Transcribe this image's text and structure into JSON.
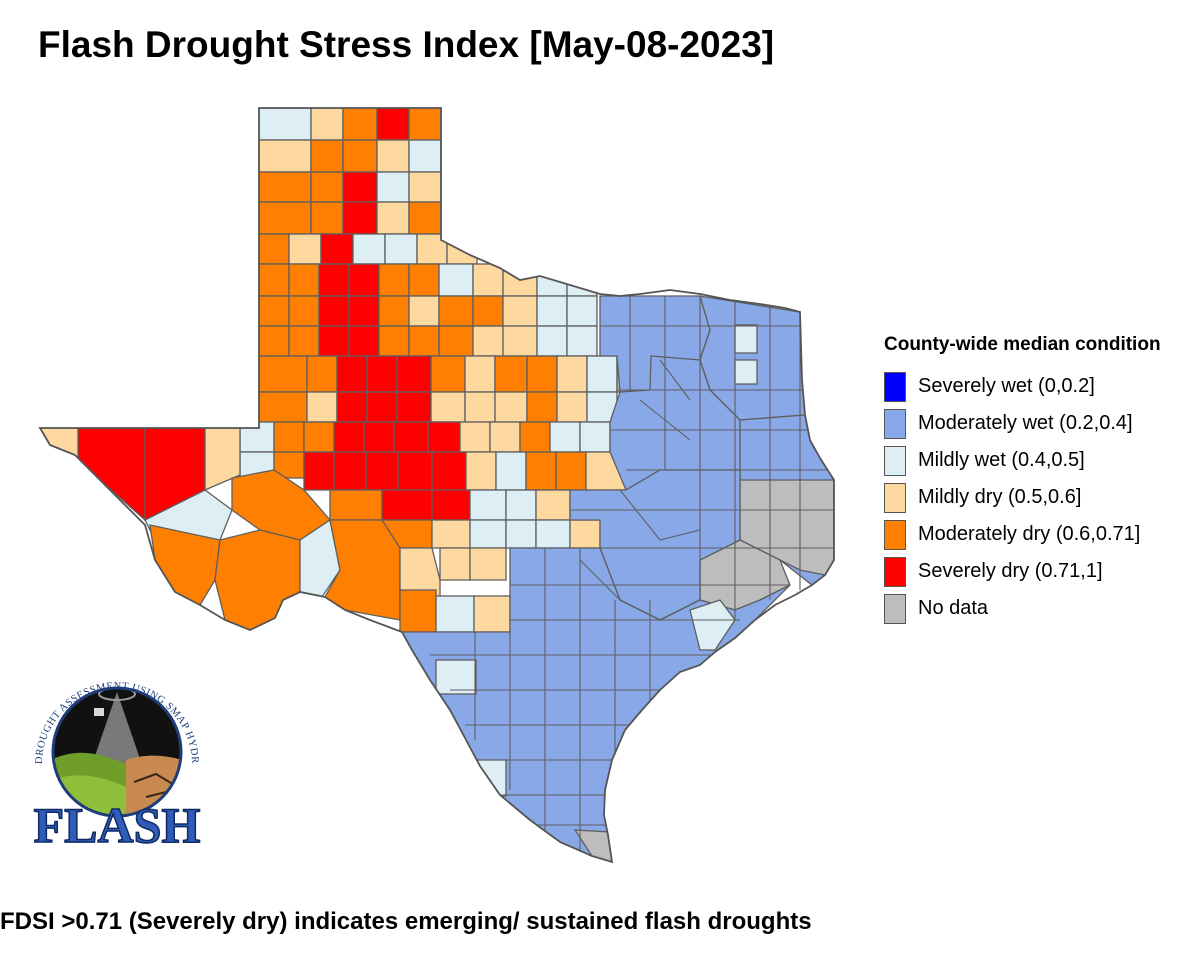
{
  "title": "Flash Drought Stress Index [May-08-2023]",
  "footer": "FDSI >0.71 (Severely dry) indicates emerging/ sustained flash droughts",
  "legend": {
    "title": "County-wide median condition",
    "items": [
      {
        "label": "Severely wet (0,0.2]",
        "color": "#0000ff"
      },
      {
        "label": "Moderately wet (0.2,0.4]",
        "color": "#89a8e8"
      },
      {
        "label": "Mildly wet (0.4,0.5]",
        "color": "#ddeef5"
      },
      {
        "label": "Mildly dry (0.5,0.6]",
        "color": "#fdd9a0"
      },
      {
        "label": "Moderately dry (0.6,0.71]",
        "color": "#ff8000"
      },
      {
        "label": "Severely dry (0.71,1]",
        "color": "#ff0000"
      },
      {
        "label": "No data",
        "color": "#bdbdbd"
      }
    ]
  },
  "logo": {
    "arc_text": "FLASH DROUGHT ASSESSMENT USING SMAP HYDROLOGY",
    "wordmark": "FLASH"
  }
}
